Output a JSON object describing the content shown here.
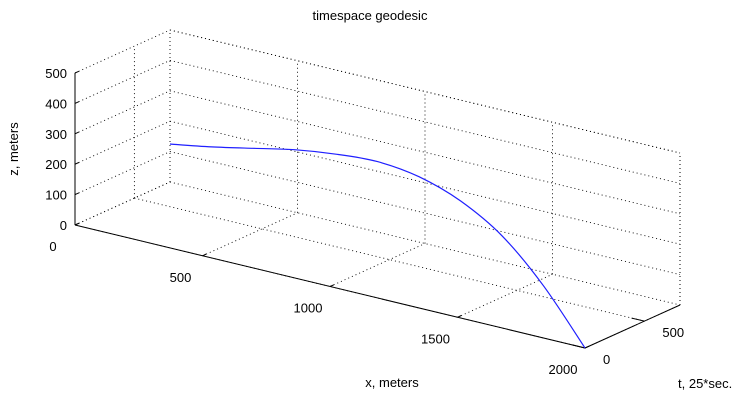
{
  "chart_data": {
    "type": "line3d",
    "title": "timespace geodesic",
    "xlabel": "x, meters",
    "ylabel": "t, 25*sec.",
    "zlabel": "z, meters",
    "xlim": [
      0,
      2000
    ],
    "ylim": [
      0,
      800
    ],
    "zlim": [
      0,
      500
    ],
    "x_ticks": [
      "0",
      "500",
      "1000",
      "1500",
      "2000"
    ],
    "y_ticks": [
      "0",
      "500"
    ],
    "z_ticks": [
      "0",
      "100",
      "200",
      "300",
      "400",
      "500"
    ],
    "grid": true,
    "series": [
      {
        "x": [
          2000,
          1800,
          1600,
          1400,
          1200,
          1000,
          800,
          600,
          400,
          200,
          0
        ],
        "t": [
          0,
          80,
          160,
          240,
          320,
          400,
          480,
          560,
          640,
          720,
          800
        ],
        "z": [
          0,
          150,
          260,
          320,
          345,
          340,
          310,
          270,
          220,
          170,
          125
        ]
      }
    ]
  }
}
